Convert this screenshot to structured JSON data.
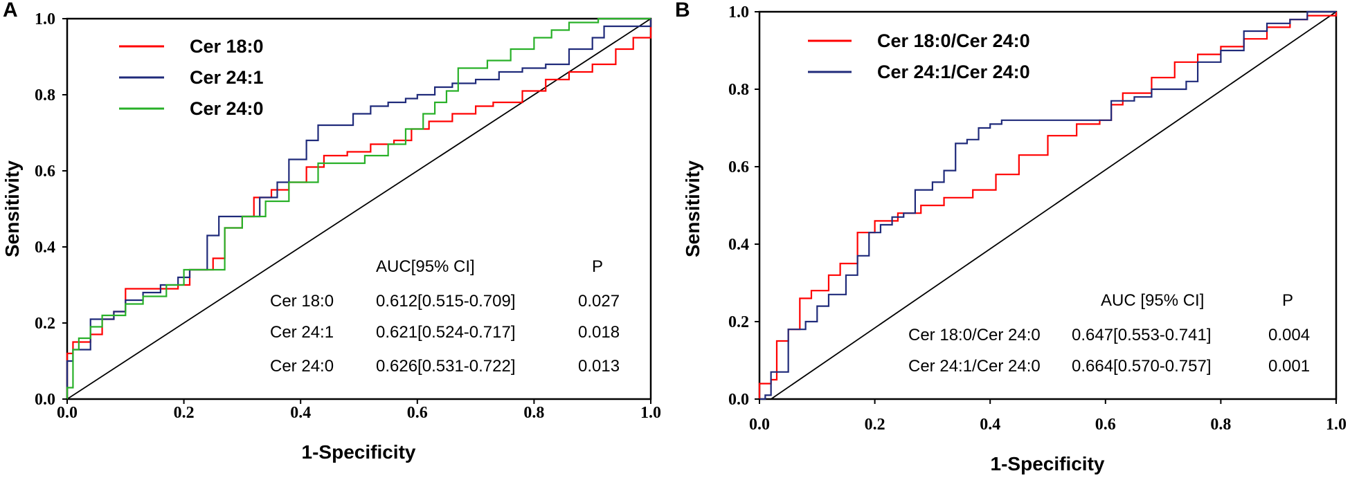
{
  "chart_data": [
    {
      "panel": "A",
      "type": "line",
      "xlabel": "1-Specificity",
      "ylabel": "Sensitivity",
      "xlim": [
        0,
        1
      ],
      "ylim": [
        0,
        1
      ],
      "xticks": [
        "0.0",
        "0.2",
        "0.4",
        "0.6",
        "0.8",
        "1.0"
      ],
      "yticks": [
        "0.0",
        "0.2",
        "0.4",
        "0.6",
        "0.8",
        "1.0"
      ],
      "legend_position": "top-left",
      "reference_line": true,
      "series": [
        {
          "name": "Cer 18:0",
          "color": "#ff0000",
          "x": [
            0,
            0,
            0.01,
            0.04,
            0.06,
            0.08,
            0.1,
            0.1,
            0.16,
            0.19,
            0.21,
            0.25,
            0.27,
            0.3,
            0.32,
            0.35,
            0.38,
            0.41,
            0.44,
            0.48,
            0.52,
            0.56,
            0.59,
            0.62,
            0.66,
            0.7,
            0.73,
            0.78,
            0.82,
            0.86,
            0.9,
            0.94,
            0.97,
            1.0
          ],
          "y": [
            0,
            0.12,
            0.15,
            0.17,
            0.21,
            0.23,
            0.29,
            0.29,
            0.29,
            0.3,
            0.34,
            0.37,
            0.45,
            0.48,
            0.53,
            0.55,
            0.57,
            0.61,
            0.64,
            0.65,
            0.67,
            0.68,
            0.71,
            0.73,
            0.75,
            0.77,
            0.78,
            0.81,
            0.84,
            0.86,
            0.88,
            0.92,
            0.95,
            1.0
          ]
        },
        {
          "name": "Cer 24:1",
          "color": "#1f2a7a",
          "x": [
            0,
            0,
            0.01,
            0.03,
            0.04,
            0.05,
            0.08,
            0.1,
            0.13,
            0.16,
            0.19,
            0.21,
            0.24,
            0.26,
            0.29,
            0.33,
            0.36,
            0.38,
            0.41,
            0.43,
            0.46,
            0.49,
            0.52,
            0.55,
            0.58,
            0.6,
            0.63,
            0.66,
            0.7,
            0.74,
            0.78,
            0.82,
            0.86,
            0.9,
            0.92,
            0.95,
            1.0
          ],
          "y": [
            0,
            0.1,
            0.13,
            0.13,
            0.21,
            0.21,
            0.23,
            0.26,
            0.28,
            0.3,
            0.32,
            0.34,
            0.43,
            0.48,
            0.48,
            0.53,
            0.57,
            0.63,
            0.68,
            0.72,
            0.72,
            0.75,
            0.77,
            0.78,
            0.79,
            0.8,
            0.82,
            0.83,
            0.84,
            0.86,
            0.87,
            0.88,
            0.92,
            0.95,
            0.98,
            0.98,
            1.0
          ]
        },
        {
          "name": "Cer 24:0",
          "color": "#28b028",
          "x": [
            0,
            0,
            0.01,
            0.02,
            0.04,
            0.06,
            0.1,
            0.13,
            0.17,
            0.2,
            0.25,
            0.27,
            0.3,
            0.34,
            0.38,
            0.41,
            0.43,
            0.47,
            0.51,
            0.55,
            0.58,
            0.61,
            0.63,
            0.65,
            0.67,
            0.68,
            0.72,
            0.76,
            0.8,
            0.83,
            0.86,
            0.9,
            0.91,
            1.0
          ],
          "y": [
            0,
            0.03,
            0.13,
            0.16,
            0.19,
            0.22,
            0.25,
            0.27,
            0.3,
            0.34,
            0.34,
            0.45,
            0.48,
            0.52,
            0.57,
            0.57,
            0.62,
            0.62,
            0.64,
            0.67,
            0.71,
            0.75,
            0.78,
            0.81,
            0.87,
            0.87,
            0.89,
            0.92,
            0.95,
            0.97,
            0.99,
            0.99,
            1.0,
            1.0
          ]
        }
      ],
      "table": {
        "headers": [
          "AUC[95% CI]",
          "P"
        ],
        "rows": [
          {
            "label": "Cer 18:0",
            "auc": "0.612[0.515-0.709]",
            "p": "0.027"
          },
          {
            "label": "Cer 24:1",
            "auc": "0.621[0.524-0.717]",
            "p": "0.018"
          },
          {
            "label": "Cer 24:0",
            "auc": "0.626[0.531-0.722]",
            "p": "0.013"
          }
        ]
      }
    },
    {
      "panel": "B",
      "type": "line",
      "xlabel": "1-Specificity",
      "ylabel": "Sensitivity",
      "xlim": [
        0,
        1
      ],
      "ylim": [
        0,
        1
      ],
      "xticks": [
        "0.0",
        "0.2",
        "0.4",
        "0.6",
        "0.8",
        "1.0"
      ],
      "yticks": [
        "0.0",
        "0.2",
        "0.4",
        "0.6",
        "0.8",
        "1.0"
      ],
      "legend_position": "top-left",
      "reference_line": true,
      "series": [
        {
          "name": "Cer 18:0/Cer 24:0",
          "color": "#ff0000",
          "x": [
            0,
            0,
            0.02,
            0.03,
            0.05,
            0.07,
            0.09,
            0.12,
            0.14,
            0.17,
            0.2,
            0.24,
            0.28,
            0.32,
            0.37,
            0.41,
            0.45,
            0.5,
            0.55,
            0.59,
            0.61,
            0.63,
            0.68,
            0.72,
            0.76,
            0.8,
            0.84,
            0.88,
            0.92,
            0.95,
            1.0
          ],
          "y": [
            0,
            0.04,
            0.05,
            0.15,
            0.18,
            0.26,
            0.28,
            0.32,
            0.35,
            0.43,
            0.46,
            0.48,
            0.5,
            0.52,
            0.54,
            0.58,
            0.63,
            0.68,
            0.71,
            0.72,
            0.76,
            0.79,
            0.83,
            0.87,
            0.89,
            0.91,
            0.93,
            0.96,
            0.98,
            0.99,
            1.0
          ]
        },
        {
          "name": "Cer 24:1/Cer 24:0",
          "color": "#1f2a7a",
          "x": [
            0,
            0.01,
            0.02,
            0.05,
            0.06,
            0.08,
            0.1,
            0.12,
            0.15,
            0.17,
            0.19,
            0.21,
            0.23,
            0.25,
            0.27,
            0.3,
            0.32,
            0.34,
            0.36,
            0.38,
            0.4,
            0.42,
            0.6,
            0.61,
            0.65,
            0.68,
            0.71,
            0.74,
            0.76,
            0.8,
            0.84,
            0.88,
            0.92,
            0.95,
            1.0
          ],
          "y": [
            0,
            0.01,
            0.07,
            0.18,
            0.18,
            0.2,
            0.24,
            0.27,
            0.32,
            0.37,
            0.43,
            0.45,
            0.47,
            0.48,
            0.54,
            0.56,
            0.59,
            0.66,
            0.67,
            0.7,
            0.71,
            0.72,
            0.72,
            0.77,
            0.78,
            0.8,
            0.8,
            0.82,
            0.87,
            0.9,
            0.95,
            0.97,
            0.98,
            1.0,
            1.0
          ]
        }
      ],
      "table": {
        "headers": [
          "AUC [95% CI]",
          "P"
        ],
        "rows": [
          {
            "label": "Cer 18:0/Cer 24:0",
            "auc": "0.647[0.553-0.741]",
            "p": "0.004"
          },
          {
            "label": "Cer 24:1/Cer 24:0",
            "auc": "0.664[0.570-0.757]",
            "p": "0.001"
          }
        ]
      }
    }
  ]
}
